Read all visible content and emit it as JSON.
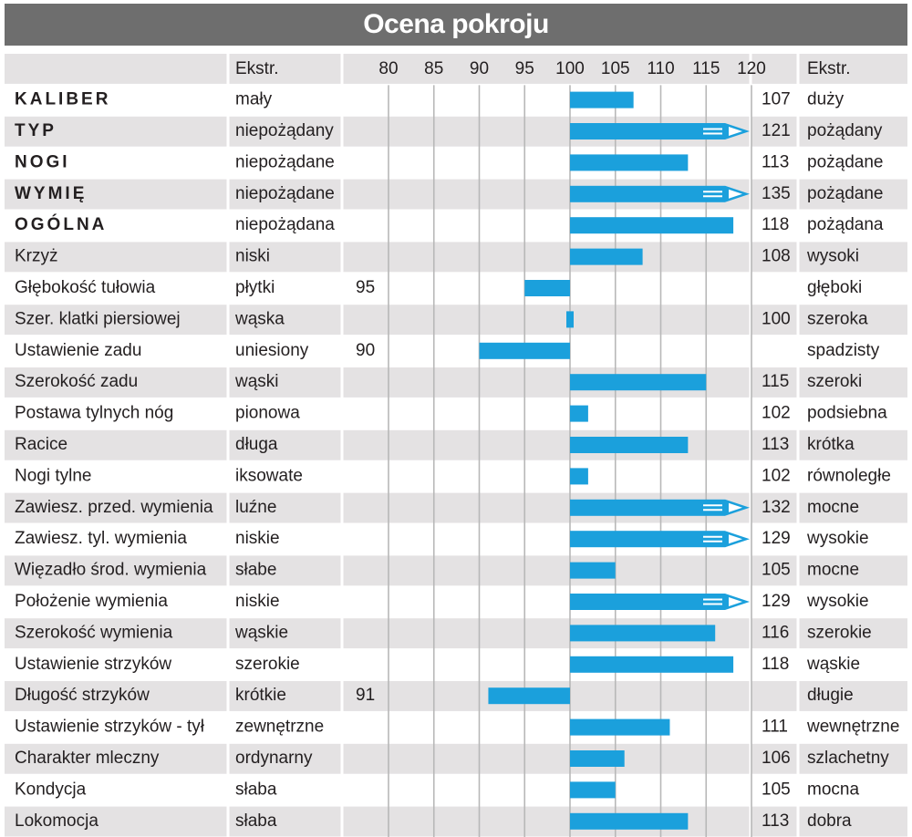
{
  "title": "Ocena pokroju",
  "header": {
    "left_extreme": "Ekstr.",
    "right_extreme": "Ekstr."
  },
  "colors": {
    "bar": "#1ba0dc",
    "title_bg": "#6e6e6e",
    "row_shade": "#e4e2e3",
    "grid": "#b8b8b8",
    "text": "#231f20"
  },
  "chart_data": {
    "type": "bar",
    "orientation": "horizontal",
    "title": "Ocena pokroju",
    "baseline": 100,
    "xlim": [
      78,
      120
    ],
    "x_ticks": [
      "80",
      "85",
      "90",
      "95",
      "100",
      "105",
      "110",
      "115",
      "120"
    ],
    "overflow_marker": "arrow for values above 120",
    "rows": [
      {
        "trait": "KALIBER",
        "bold": true,
        "low": "mały",
        "value": 107,
        "high": "duży"
      },
      {
        "trait": "TYP",
        "bold": true,
        "low": "niepożądany",
        "value": 121,
        "high": "pożądany"
      },
      {
        "trait": "NOGI",
        "bold": true,
        "low": "niepożądane",
        "value": 113,
        "high": "pożądane"
      },
      {
        "trait": "WYMIĘ",
        "bold": true,
        "low": "niepożądane",
        "value": 135,
        "high": "pożądane"
      },
      {
        "trait": "OGÓLNA",
        "bold": true,
        "low": "niepożądana",
        "value": 118,
        "high": "pożądana"
      },
      {
        "trait": "Krzyż",
        "bold": false,
        "low": "niski",
        "value": 108,
        "high": "wysoki"
      },
      {
        "trait": "Głębokość tułowia",
        "bold": false,
        "low": "płytki",
        "value": 95,
        "high": "głęboki"
      },
      {
        "trait": "Szer. klatki piersiowej",
        "bold": false,
        "low": "wąska",
        "value": 100,
        "high": "szeroka"
      },
      {
        "trait": "Ustawienie zadu",
        "bold": false,
        "low": "uniesiony",
        "value": 90,
        "high": "spadzisty"
      },
      {
        "trait": "Szerokość zadu",
        "bold": false,
        "low": "wąski",
        "value": 115,
        "high": "szeroki"
      },
      {
        "trait": "Postawa tylnych nóg",
        "bold": false,
        "low": "pionowa",
        "value": 102,
        "high": "podsiebna"
      },
      {
        "trait": "Racice",
        "bold": false,
        "low": "długa",
        "value": 113,
        "high": "krótka"
      },
      {
        "trait": "Nogi tylne",
        "bold": false,
        "low": "iksowate",
        "value": 102,
        "high": "równoległe"
      },
      {
        "trait": "Zawiesz. przed. wymienia",
        "bold": false,
        "low": "luźne",
        "value": 132,
        "high": "mocne"
      },
      {
        "trait": "Zawiesz. tyl. wymienia",
        "bold": false,
        "low": "niskie",
        "value": 129,
        "high": "wysokie"
      },
      {
        "trait": "Więzadło środ. wymienia",
        "bold": false,
        "low": "słabe",
        "value": 105,
        "high": "mocne"
      },
      {
        "trait": "Położenie wymienia",
        "bold": false,
        "low": "niskie",
        "value": 129,
        "high": "wysokie"
      },
      {
        "trait": "Szerokość wymienia",
        "bold": false,
        "low": "wąskie",
        "value": 116,
        "high": "szerokie"
      },
      {
        "trait": "Ustawienie strzyków",
        "bold": false,
        "low": "szerokie",
        "value": 118,
        "high": "wąskie"
      },
      {
        "trait": "Długość strzyków",
        "bold": false,
        "low": "krótkie",
        "value": 91,
        "high": "długie"
      },
      {
        "trait": "Ustawienie strzyków - tył",
        "bold": false,
        "low": "zewnętrzne",
        "value": 111,
        "high": "wewnętrzne"
      },
      {
        "trait": "Charakter mleczny",
        "bold": false,
        "low": "ordynarny",
        "value": 106,
        "high": "szlachetny"
      },
      {
        "trait": "Kondycja",
        "bold": false,
        "low": "słaba",
        "value": 105,
        "high": "mocna"
      },
      {
        "trait": "Lokomocja",
        "bold": false,
        "low": "słaba",
        "value": 113,
        "high": "dobra"
      }
    ]
  }
}
